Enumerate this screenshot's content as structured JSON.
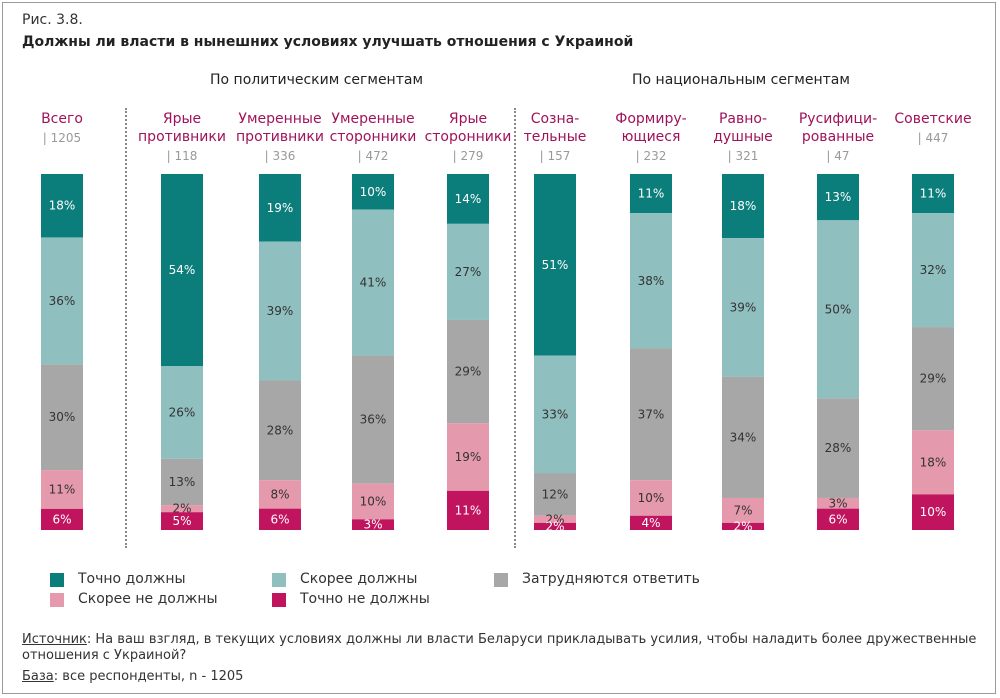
{
  "figure_label": "Рис. 3.8.",
  "title": "Должны ли власти в нынешних условиях улучшать отношения с Украиной",
  "segment_headers": {
    "political": "По политическим сегментам",
    "national": "По национальным сегментам"
  },
  "chart_data": {
    "type": "bar",
    "stacked": true,
    "orientation": "vertical",
    "ylim": [
      0,
      100
    ],
    "unit": "%",
    "categories": [
      {
        "name": [
          "Всего"
        ],
        "n": "1205"
      },
      {
        "name": [
          "Ярые",
          "противники"
        ],
        "n": "118"
      },
      {
        "name": [
          "Умеренные",
          "противники"
        ],
        "n": "336"
      },
      {
        "name": [
          "Умеренные",
          "сторонники"
        ],
        "n": "472"
      },
      {
        "name": [
          "Ярые",
          "сторонники"
        ],
        "n": "279"
      },
      {
        "name": [
          "Созна-",
          "тельные"
        ],
        "n": "157"
      },
      {
        "name": [
          "Формиру-",
          "ющиеся"
        ],
        "n": "232"
      },
      {
        "name": [
          "Равно-",
          "душные"
        ],
        "n": "321"
      },
      {
        "name": [
          "Русифици-",
          "рованные"
        ],
        "n": "47"
      },
      {
        "name": [
          "Советские"
        ],
        "n": "447"
      }
    ],
    "series": [
      {
        "name": "Точно должны",
        "color": "#0b7d7b",
        "values": [
          18,
          54,
          19,
          10,
          14,
          51,
          11,
          18,
          13,
          11
        ]
      },
      {
        "name": "Скорее должны",
        "color": "#8fbfbe",
        "values": [
          36,
          26,
          39,
          41,
          27,
          33,
          38,
          39,
          50,
          32
        ]
      },
      {
        "name": "Затрудняются ответить",
        "color": "#a7a7a7",
        "values": [
          30,
          13,
          28,
          36,
          29,
          12,
          37,
          34,
          28,
          29
        ]
      },
      {
        "name": "Скорее не должны",
        "color": "#e49aac",
        "values": [
          11,
          2,
          8,
          10,
          19,
          2,
          10,
          7,
          3,
          18
        ]
      },
      {
        "name": "Точно не должны",
        "color": "#c0145e",
        "values": [
          6,
          5,
          6,
          3,
          11,
          2,
          4,
          2,
          6,
          10
        ]
      }
    ],
    "label_color_category": "#a0125a",
    "n_color": "#999999"
  },
  "legend": [
    {
      "label": "Точно должны",
      "color": "#0b7d7b"
    },
    {
      "label": "Скорее должны",
      "color": "#8fbfbe"
    },
    {
      "label": "Затрудняются ответить",
      "color": "#a7a7a7"
    },
    {
      "label": "Скорее не должны",
      "color": "#e49aac"
    },
    {
      "label": "Точно не должны",
      "color": "#c0145e"
    }
  ],
  "footnote": {
    "source_label": "Источник",
    "source_text": ": На ваш взгляд, в текущих условиях должны ли власти Беларуси прикладывать усилия, чтобы наладить более дружественные",
    "source_text2": "отношения с Украиной?",
    "base_label": "База",
    "base_text": ": все респонденты, n - 1205"
  }
}
